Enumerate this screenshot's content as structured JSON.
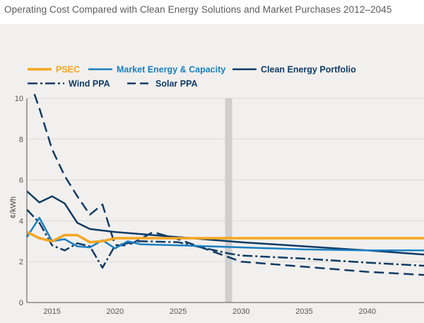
{
  "chart_data": {
    "type": "line",
    "title": "Operating Cost Compared with Clean Energy Solutions and Market Purchases 2012–2045",
    "xlabel": "",
    "ylabel": "¢/kWh",
    "xlim": [
      2013,
      2044.5
    ],
    "ylim": [
      0,
      10
    ],
    "xticks": [
      2015,
      2020,
      2025,
      2030,
      2035,
      2040
    ],
    "yticks": [
      0,
      2,
      4,
      6,
      8,
      10
    ],
    "highlight_year": 2029,
    "legend_position": "top-left",
    "series": [
      {
        "name": "PSEC",
        "color": "#f5a623",
        "style": "solid",
        "x": [
          2013,
          2014,
          2015,
          2016,
          2017,
          2018,
          2019,
          2020,
          2022,
          2025,
          2030,
          2035,
          2040,
          2044.5
        ],
        "y": [
          3.45,
          3.15,
          3.0,
          3.3,
          3.3,
          2.95,
          3.0,
          3.15,
          3.15,
          3.15,
          3.15,
          3.15,
          3.15,
          3.15
        ]
      },
      {
        "name": "Market Energy & Capacity",
        "color": "#1a7fc1",
        "style": "solid",
        "x": [
          2013,
          2014,
          2015,
          2016,
          2017,
          2018,
          2019,
          2020,
          2021,
          2022,
          2025,
          2030,
          2035,
          2040,
          2044.5
        ],
        "y": [
          3.2,
          4.15,
          3.0,
          3.1,
          2.75,
          2.7,
          3.05,
          2.65,
          3.0,
          2.85,
          2.8,
          2.7,
          2.6,
          2.55,
          2.55
        ]
      },
      {
        "name": "Clean Energy Portfolio",
        "color": "#0f3b66",
        "style": "solid",
        "x": [
          2013,
          2014,
          2015,
          2016,
          2017,
          2018,
          2020,
          2025,
          2030,
          2035,
          2040,
          2044.5
        ],
        "y": [
          5.45,
          4.9,
          5.2,
          4.85,
          3.9,
          3.6,
          3.45,
          3.2,
          2.95,
          2.75,
          2.55,
          2.35
        ]
      },
      {
        "name": "Wind PPA",
        "color": "#0f3b66",
        "style": "dashdot",
        "x": [
          2013,
          2014,
          2015,
          2016,
          2017,
          2018,
          2019,
          2020,
          2021,
          2022,
          2025,
          2029,
          2030,
          2035,
          2040,
          2044.5
        ],
        "y": [
          4.55,
          3.9,
          2.8,
          2.55,
          2.9,
          2.75,
          1.7,
          2.8,
          2.9,
          3.0,
          2.95,
          2.4,
          2.3,
          2.15,
          1.95,
          1.8
        ]
      },
      {
        "name": "Solar PPA",
        "color": "#0f3b66",
        "style": "dashed",
        "x": [
          2013.6,
          2014,
          2015,
          2016,
          2017,
          2018,
          2019,
          2020,
          2021,
          2022,
          2023,
          2025,
          2030,
          2035,
          2040,
          2044.5
        ],
        "y": [
          10.2,
          9.5,
          7.5,
          6.2,
          5.2,
          4.3,
          4.8,
          2.8,
          2.8,
          3.1,
          3.45,
          3.1,
          2.0,
          1.75,
          1.5,
          1.35
        ]
      }
    ]
  }
}
